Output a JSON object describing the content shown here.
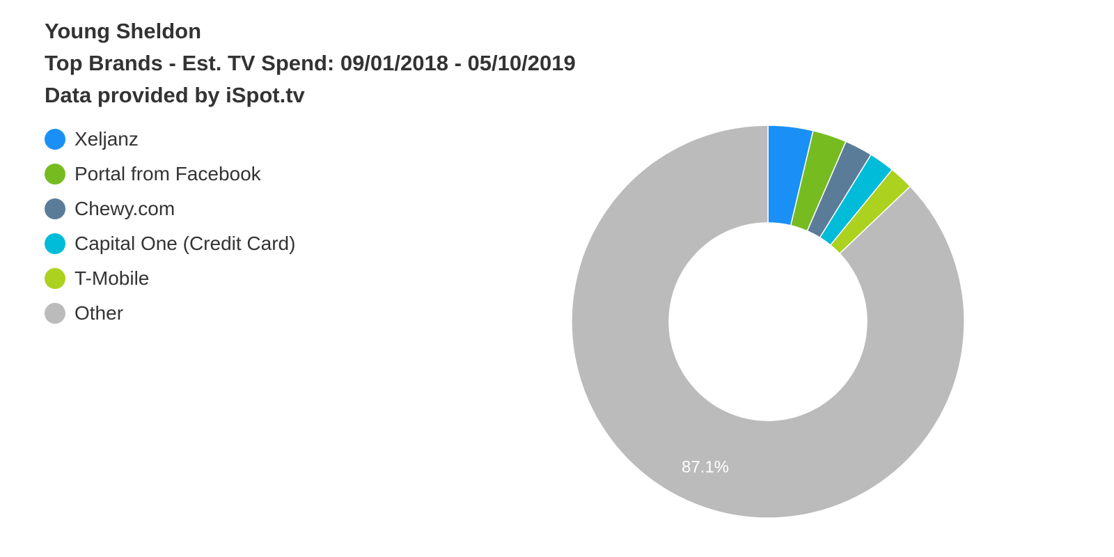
{
  "chart_data": {
    "type": "pie",
    "title_lines": [
      "Young Sheldon",
      "Top Brands - Est. TV Spend: 09/01/2018 - 05/10/2019",
      "Data provided by iSpot.tv"
    ],
    "legend_position": "top-left",
    "donut": true,
    "slices": [
      {
        "label": "Xeljanz",
        "value": 3.7,
        "color": "#1a90f7"
      },
      {
        "label": "Portal from Facebook",
        "value": 2.8,
        "color": "#76bc21"
      },
      {
        "label": "Chewy.com",
        "value": 2.3,
        "color": "#5b7c99"
      },
      {
        "label": "Capital One (Credit Card)",
        "value": 2.1,
        "color": "#00bcd9"
      },
      {
        "label": "T-Mobile",
        "value": 2.0,
        "color": "#acd11e"
      },
      {
        "label": "Other",
        "value": 87.1,
        "color": "#bbbbbb",
        "data_label": "87.1%"
      }
    ]
  }
}
